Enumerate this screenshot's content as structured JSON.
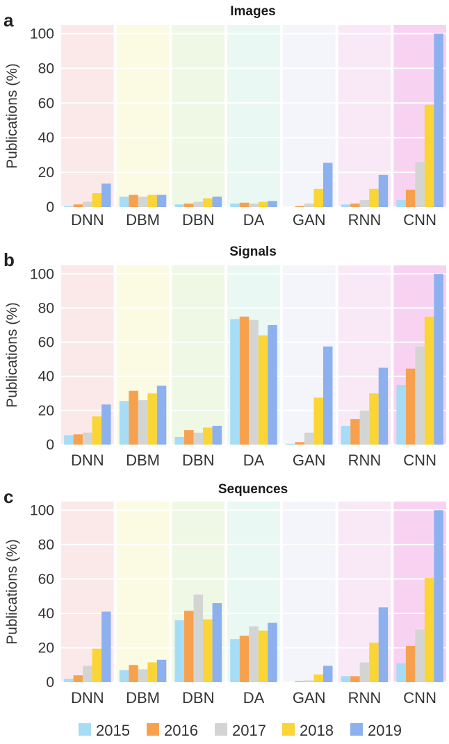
{
  "legend": {
    "years": [
      "2015",
      "2016",
      "2017",
      "2018",
      "2019"
    ],
    "colors": [
      "#a6dcf5",
      "#f7a14f",
      "#d3d5d3",
      "#fbd535",
      "#8db0ef"
    ]
  },
  "category_backgrounds": [
    "#fbe9e9",
    "#fbfbe3",
    "#eef8e5",
    "#e9f8f3",
    "#f4f4fb",
    "#f9e9f7",
    "#f7d3f1"
  ],
  "chart_data": [
    {
      "type": "bar",
      "letter": "a",
      "title": "Images",
      "ylabel": "Publications (%)",
      "ylim": [
        0,
        105
      ],
      "yticks": [
        "0",
        "20",
        "40",
        "60",
        "80",
        "100"
      ],
      "categories": [
        "DNN",
        "DBM",
        "DBN",
        "DA",
        "GAN",
        "RNN",
        "CNN"
      ],
      "series": [
        {
          "name": "2015",
          "values": [
            0.5,
            6,
            1.5,
            2,
            0,
            1.5,
            4
          ]
        },
        {
          "name": "2016",
          "values": [
            1.5,
            7,
            2,
            2.5,
            0.5,
            2,
            10
          ]
        },
        {
          "name": "2017",
          "values": [
            3,
            6,
            3,
            2,
            2,
            4,
            26
          ]
        },
        {
          "name": "2018",
          "values": [
            8,
            7,
            5,
            3,
            10.5,
            10.5,
            59
          ]
        },
        {
          "name": "2019",
          "values": [
            13.5,
            7,
            6,
            3.5,
            25.5,
            18.5,
            100
          ]
        }
      ]
    },
    {
      "type": "bar",
      "letter": "b",
      "title": "Signals",
      "ylabel": "Publications (%)",
      "ylim": [
        0,
        105
      ],
      "yticks": [
        "0",
        "20",
        "40",
        "60",
        "80",
        "100"
      ],
      "categories": [
        "DNN",
        "DBM",
        "DBN",
        "DA",
        "GAN",
        "RNN",
        "CNN"
      ],
      "series": [
        {
          "name": "2015",
          "values": [
            5.5,
            25.5,
            4.5,
            73.5,
            0.5,
            11,
            35
          ]
        },
        {
          "name": "2016",
          "values": [
            6,
            31.5,
            8.5,
            75,
            1.5,
            15,
            44.5
          ]
        },
        {
          "name": "2017",
          "values": [
            7,
            26,
            7,
            73,
            7,
            20,
            57.5
          ]
        },
        {
          "name": "2018",
          "values": [
            16.5,
            30,
            10,
            64,
            27.5,
            30,
            75
          ]
        },
        {
          "name": "2019",
          "values": [
            23.5,
            34.5,
            11,
            70,
            57.5,
            45,
            100
          ]
        }
      ]
    },
    {
      "type": "bar",
      "letter": "c",
      "title": "Sequences",
      "ylabel": "Publications (%)",
      "ylim": [
        0,
        105
      ],
      "yticks": [
        "0",
        "20",
        "40",
        "60",
        "80",
        "100"
      ],
      "categories": [
        "DNN",
        "DBM",
        "DBN",
        "DA",
        "GAN",
        "RNN",
        "CNN"
      ],
      "series": [
        {
          "name": "2015",
          "values": [
            2,
            7,
            36,
            25,
            0,
            3.5,
            11
          ]
        },
        {
          "name": "2016",
          "values": [
            4,
            10,
            41.5,
            27,
            0.5,
            3.5,
            21
          ]
        },
        {
          "name": "2017",
          "values": [
            9.5,
            7.5,
            51,
            32.5,
            1,
            11.5,
            30.5
          ]
        },
        {
          "name": "2018",
          "values": [
            19.5,
            11.5,
            36.5,
            30,
            4.5,
            23,
            60.5
          ]
        },
        {
          "name": "2019",
          "values": [
            41,
            13,
            46,
            34.5,
            9.5,
            43.5,
            100
          ]
        }
      ]
    }
  ]
}
